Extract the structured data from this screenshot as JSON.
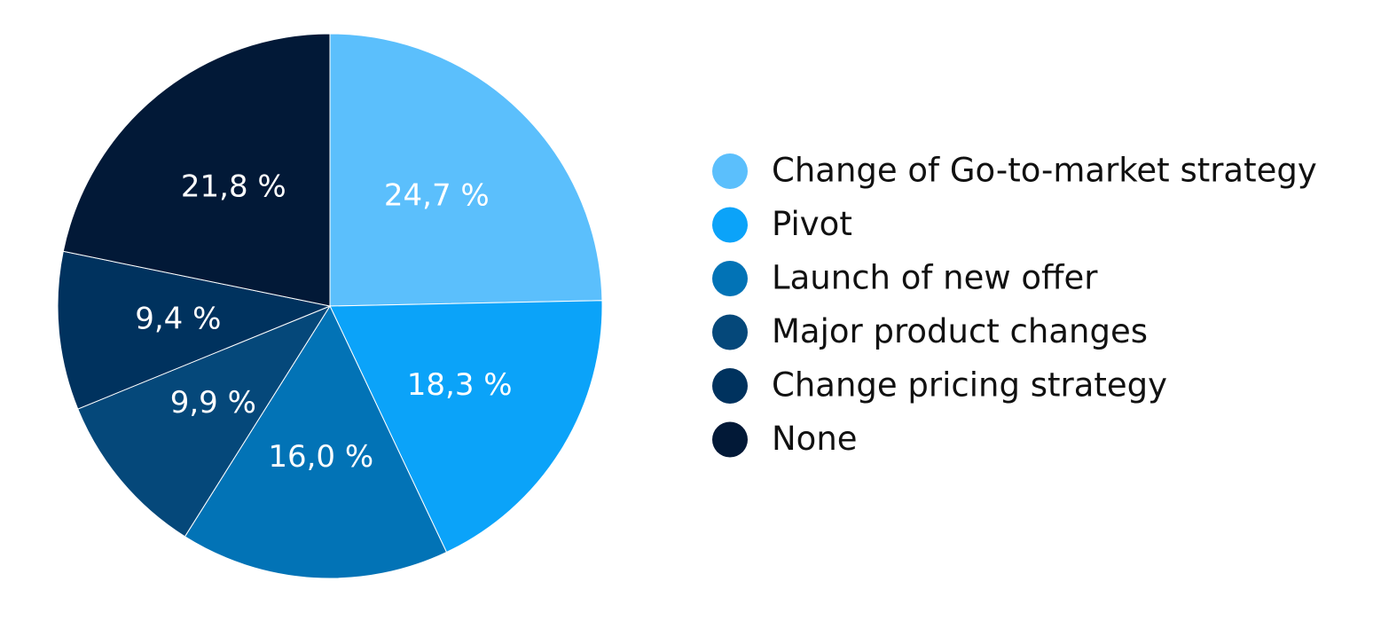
{
  "chart_data": {
    "type": "pie",
    "title": "",
    "legend_position": "right",
    "slices": [
      {
        "label": "Change of Go-to-market strategy",
        "value": 24.7,
        "display": "24,7 %",
        "color": "#5BBFFC"
      },
      {
        "label": "Pivot",
        "value": 18.3,
        "display": "18,3 %",
        "color": "#0BA3F9"
      },
      {
        "label": "Launch of new offer",
        "value": 16.0,
        "display": "16,0 %",
        "color": "#0273B6"
      },
      {
        "label": "Major product changes",
        "value": 9.9,
        "display": "9,9 %",
        "color": "#05487A"
      },
      {
        "label": "Change pricing strategy",
        "value": 9.4,
        "display": "9,4 %",
        "color": "#00325E"
      },
      {
        "label": "None",
        "value": 21.8,
        "display": "21,8 %",
        "color": "#021937"
      }
    ]
  }
}
